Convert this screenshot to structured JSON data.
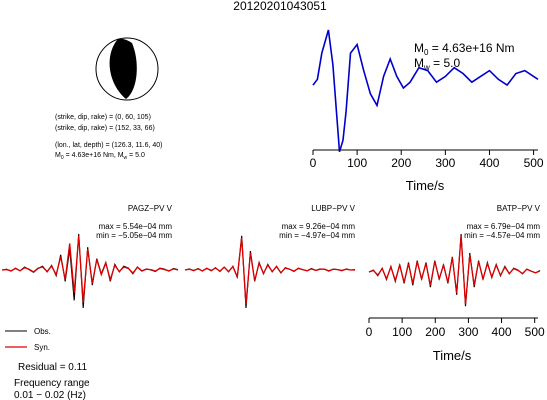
{
  "title": "20120201043051",
  "mechanism": {
    "line1": "(strike, dip, rake) = (0, 60, 105)",
    "line2": "(strike, dip, rake) = (152, 33, 66)",
    "line3": "(lon., lat, depth) = (126.3, 11.6, 40)",
    "m0_label": "M",
    "m0_sub": "0",
    "m0_value": " = 4.63e+16 Nm, M",
    "mw_sub": "w",
    "mw_value": " = 5.0"
  },
  "stf_annotation": {
    "m0_label": "M",
    "m0_sub": "0",
    "m0_value": " = 4.63e+16 Nm",
    "mw_label": "M",
    "mw_sub": "w",
    "mw_value": " = 5.0"
  },
  "stations": [
    {
      "name": "PAGZ−PV V",
      "max": "max = 5.54e−04 mm",
      "min": "min = −5.05e−04 mm"
    },
    {
      "name": "LUBP−PV V",
      "max": "max = 9.26e−04 mm",
      "min": "min = −4.97e−04 mm"
    },
    {
      "name": "BATP−PV V",
      "max": "max = 6.79e−04 mm",
      "min": "min = −4.57e−04 mm"
    }
  ],
  "legend": {
    "obs": "Obs.",
    "syn": "Syn."
  },
  "residual": "Residual = 0.11",
  "freq_title": "Frequency range",
  "freq_value": "0.01 − 0.02 (Hz)",
  "colors": {
    "obs": "#000000",
    "syn": "#dd0000",
    "stf": "#0000cc"
  },
  "chart_data": [
    {
      "type": "line",
      "title": "",
      "xlabel": "Time/s",
      "ylabel": "",
      "xlim": [
        0,
        510
      ],
      "xticks": [
        "0",
        "100",
        "200",
        "300",
        "400",
        "500"
      ],
      "series": [
        {
          "values_x": [
            0,
            10,
            20,
            35,
            45,
            55,
            60,
            68,
            75,
            85,
            100,
            115,
            130,
            145,
            160,
            175,
            190,
            205,
            220,
            240,
            260,
            280,
            300,
            320,
            340,
            360,
            380,
            400,
            420,
            440,
            460,
            480,
            500,
            510
          ],
          "values_y": [
            0.05,
            0.15,
            0.6,
            1.0,
            0.4,
            -0.6,
            -1.1,
            -0.9,
            -0.4,
            0.6,
            0.75,
            0.3,
            -0.1,
            -0.3,
            0.2,
            0.5,
            0.2,
            0.0,
            0.1,
            0.35,
            0.3,
            0.1,
            0.2,
            0.35,
            0.25,
            0.1,
            0.2,
            0.3,
            0.15,
            0.05,
            0.25,
            0.3,
            0.2,
            0.15
          ]
        }
      ]
    },
    {
      "type": "line",
      "title": "PAGZ−PV V",
      "series": [
        {
          "name": "Obs.",
          "values": [
            0,
            0.02,
            -0.03,
            0.05,
            -0.02,
            0.08,
            0.01,
            -0.06,
            0.04,
            0.1,
            -0.05,
            0.12,
            -0.15,
            0.4,
            -0.3,
            0.55,
            -0.8,
            0.95,
            -1.0,
            0.6,
            -0.4,
            0.3,
            -0.1,
            0.2,
            -0.3,
            0.15,
            -0.05,
            0.1,
            0.05,
            -0.1,
            0.08,
            -0.02,
            0.03,
            0,
            -0.04,
            0.05,
            0.02,
            -0.03,
            0.04,
            0.01
          ]
        },
        {
          "name": "Syn.",
          "values": [
            0,
            0.01,
            -0.02,
            0.04,
            -0.02,
            0.06,
            0.02,
            -0.05,
            0.05,
            0.08,
            -0.04,
            0.1,
            -0.12,
            0.35,
            -0.25,
            0.7,
            -0.6,
            0.9,
            -0.85,
            0.55,
            -0.35,
            0.28,
            -0.12,
            0.18,
            -0.25,
            0.12,
            -0.04,
            0.08,
            0.04,
            -0.08,
            0.07,
            -0.03,
            0.02,
            0.01,
            -0.03,
            0.04,
            0.01,
            -0.02,
            0.03,
            0
          ]
        }
      ]
    },
    {
      "type": "line",
      "title": "LUBP−PV V",
      "series": [
        {
          "name": "Obs.",
          "values": [
            0,
            0.03,
            -0.02,
            0.04,
            -0.03,
            0.05,
            -0.02,
            0.06,
            -0.04,
            0.08,
            -0.05,
            0.1,
            -0.2,
            0.9,
            -1.0,
            0.5,
            -0.3,
            0.2,
            -0.1,
            0.15,
            -0.05,
            0.1,
            -0.08,
            0.06,
            0.02,
            -0.04,
            0.05,
            0.01,
            -0.02,
            0.04,
            -0.01,
            0.03,
            0.02,
            -0.03,
            0.02,
            0.01,
            -0.02,
            0.03,
            0,
            0.01
          ]
        },
        {
          "name": "Syn.",
          "values": [
            0,
            0.02,
            -0.01,
            0.03,
            -0.02,
            0.04,
            -0.01,
            0.05,
            -0.03,
            0.07,
            -0.04,
            0.09,
            -0.18,
            0.85,
            -0.9,
            0.45,
            -0.28,
            0.18,
            -0.09,
            0.13,
            -0.04,
            0.09,
            -0.07,
            0.05,
            0.02,
            -0.03,
            0.04,
            0.01,
            -0.02,
            0.03,
            -0.01,
            0.02,
            0.02,
            -0.02,
            0.02,
            0.01,
            -0.01,
            0.02,
            0,
            0
          ]
        }
      ]
    },
    {
      "type": "line",
      "title": "BATP−PV V",
      "xlabel": "Time/s",
      "xlim": [
        0,
        510
      ],
      "xticks": [
        "0",
        "100",
        "200",
        "300",
        "400",
        "500"
      ],
      "series": [
        {
          "name": "Obs.",
          "values": [
            0,
            0.05,
            -0.1,
            0.1,
            -0.2,
            0.15,
            -0.25,
            0.2,
            -0.3,
            0.25,
            -0.35,
            0.3,
            -0.2,
            0.25,
            -0.4,
            0.3,
            -0.2,
            0.2,
            -0.3,
            0.4,
            -0.6,
            1.0,
            -0.9,
            0.5,
            -0.4,
            0.3,
            -0.2,
            0.25,
            -0.15,
            0.2,
            -0.1,
            0.15,
            -0.05,
            0.1,
            0.05,
            -0.05,
            0.08,
            0.02,
            -0.02,
            0.04
          ]
        },
        {
          "name": "Syn.",
          "values": [
            0,
            0.04,
            -0.08,
            0.09,
            -0.18,
            0.13,
            -0.22,
            0.18,
            -0.27,
            0.22,
            -0.3,
            0.27,
            -0.18,
            0.22,
            -0.35,
            0.28,
            -0.18,
            0.18,
            -0.27,
            0.38,
            -0.55,
            0.95,
            -0.85,
            0.45,
            -0.35,
            0.28,
            -0.18,
            0.22,
            -0.13,
            0.18,
            -0.09,
            0.13,
            -0.04,
            0.09,
            0.04,
            -0.04,
            0.07,
            0.02,
            -0.02,
            0.03
          ]
        }
      ]
    }
  ]
}
